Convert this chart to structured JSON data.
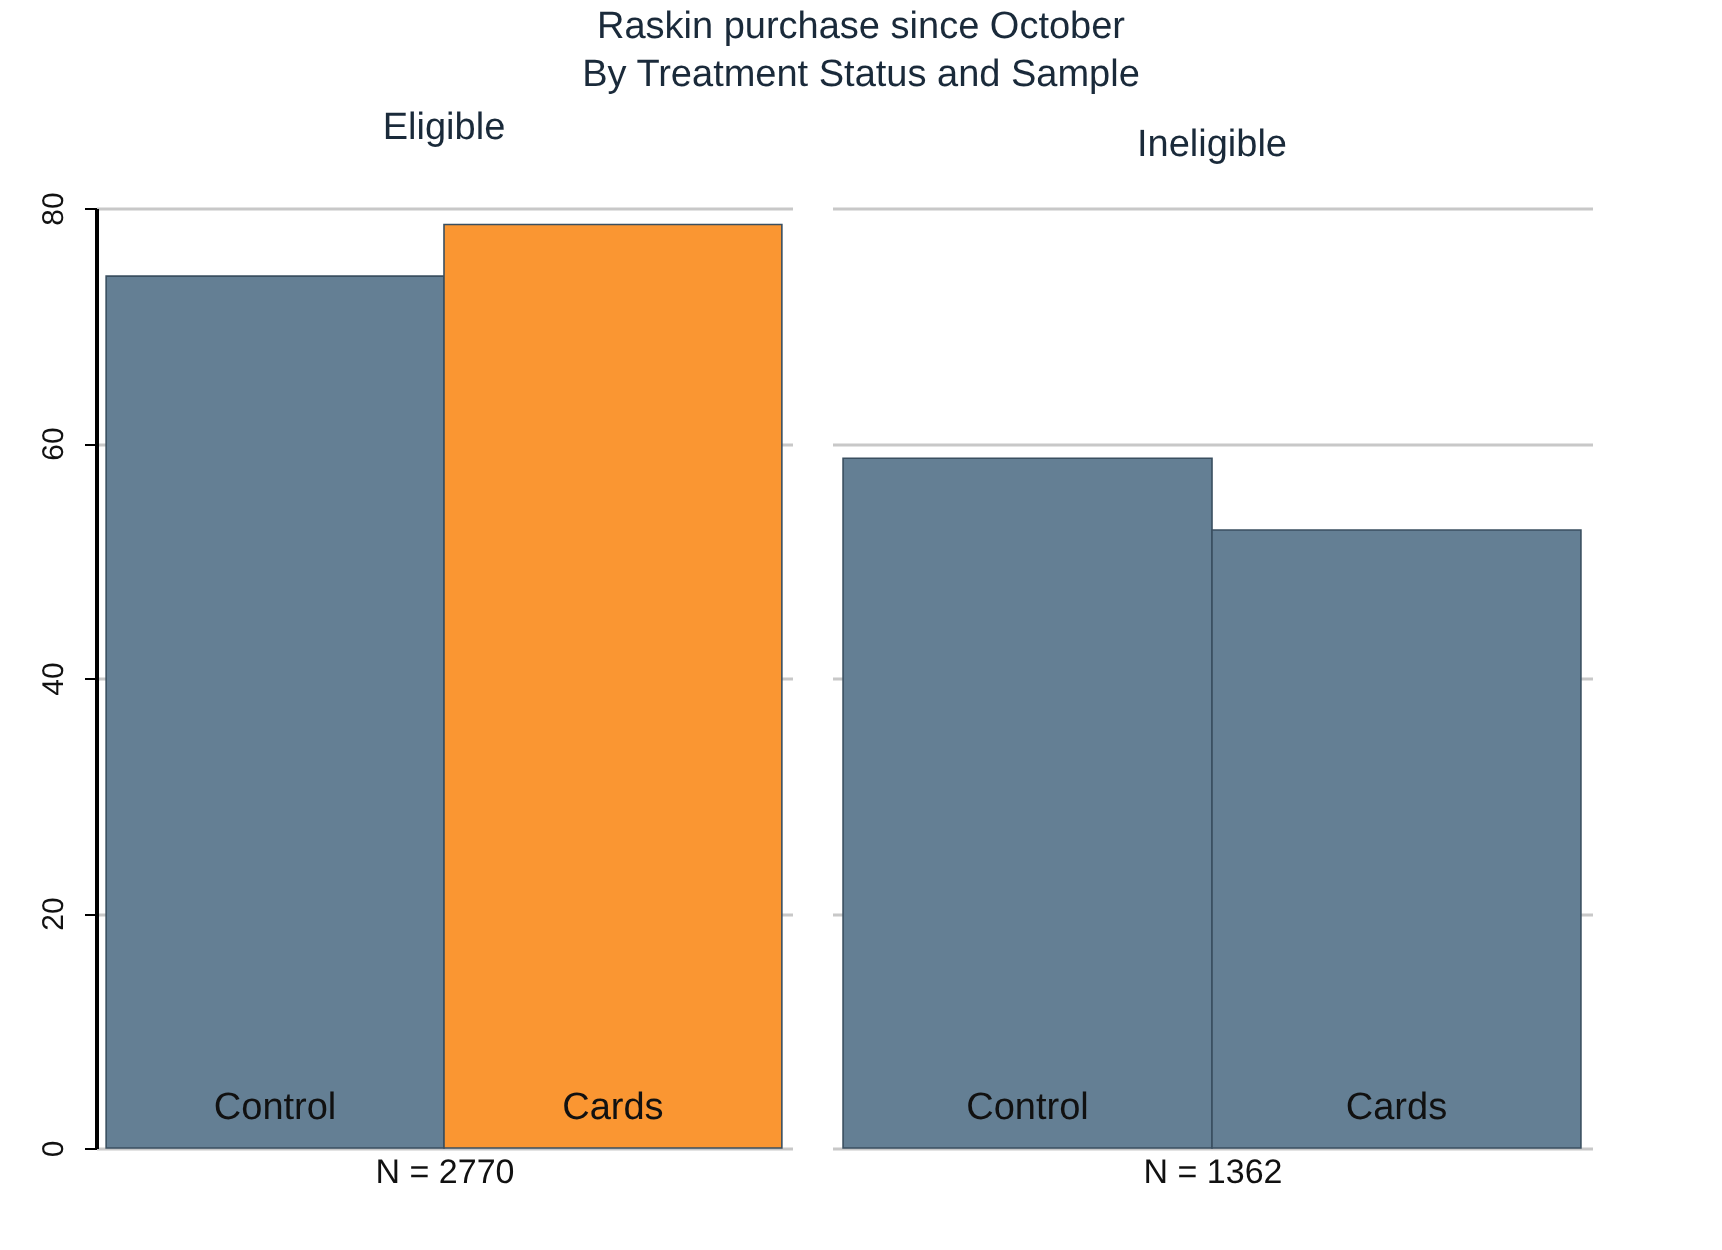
{
  "chart_data": [
    {
      "type": "bar",
      "title": "Eligible",
      "annotations": [
        "Raskin purchase since October",
        "By Treatment Status and Sample"
      ],
      "categories": [
        "Control",
        "Cards"
      ],
      "values": [
        74.2,
        78.6
      ],
      "colors": [
        "#647f94",
        "#fa9632"
      ],
      "xlabel": "N = 2770",
      "ylim": [
        0,
        80
      ],
      "yticks": [
        0,
        20,
        40,
        60,
        80
      ],
      "grid": "y"
    },
    {
      "type": "bar",
      "title": "Ineligible",
      "categories": [
        "Control",
        "Cards"
      ],
      "values": [
        58.7,
        52.6
      ],
      "colors": [
        "#647f94",
        "#647f94"
      ],
      "xlabel": "N = 1362",
      "ylim": [
        0,
        80
      ],
      "yticks": [
        0,
        20,
        40,
        60,
        80
      ],
      "grid": "y",
      "tick_labels": "x"
    }
  ]
}
